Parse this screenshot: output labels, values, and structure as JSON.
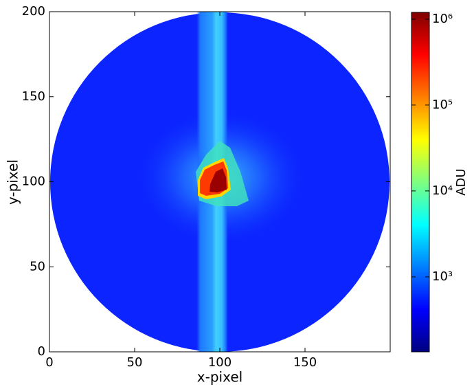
{
  "chart_data": {
    "type": "heatmap",
    "x_label": "x-pixel",
    "y_label": "y-pixel",
    "xlim": [
      0,
      200
    ],
    "ylim": [
      0,
      200
    ],
    "xticks": [
      0,
      50,
      100,
      150
    ],
    "yticks": [
      0,
      50,
      100,
      150,
      200
    ],
    "colorbar": {
      "label": "ADU",
      "log_scale": true,
      "colormap": "jet",
      "clim": [
        134,
        1200000
      ],
      "ticks": [
        {
          "value": 1000,
          "label": "10³"
        },
        {
          "value": 10000,
          "label": "10⁴"
        },
        {
          "value": 100000,
          "label": "10⁵"
        },
        {
          "value": 1000000,
          "label": "10⁶"
        }
      ]
    }
  }
}
